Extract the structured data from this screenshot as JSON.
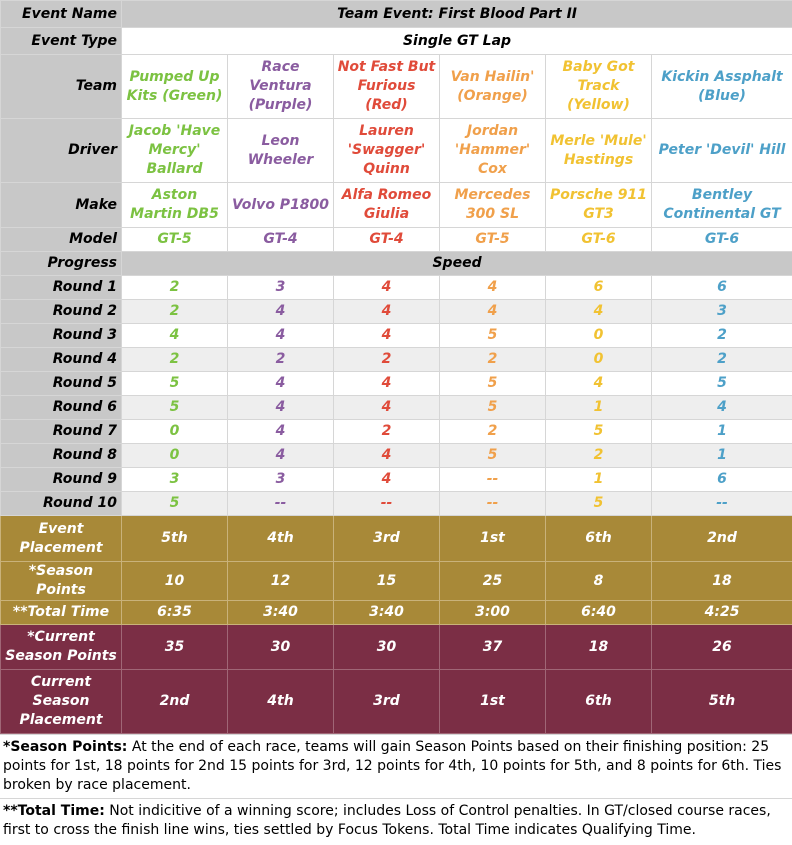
{
  "colors": {
    "green": "#7cc242",
    "purple": "#8a5ca0",
    "red": "#e04b3a",
    "orange": "#f0a04b",
    "yellow": "#f1c232",
    "blue": "#4da0c8",
    "header_gray": "#c8c8c8",
    "gold": "#a88938",
    "maroon": "#7b2e45"
  },
  "labels": {
    "event_name": "Event Name",
    "event_type": "Event Type",
    "team": "Team",
    "driver": "Driver",
    "make": "Make",
    "model": "Model",
    "progress": "Progress",
    "speed": "Speed",
    "event_placement": "Event Placement",
    "season_points": "*Season Points",
    "total_time": "**Total Time",
    "current_points": "*Current Season Points",
    "current_placement": "Current Season Placement"
  },
  "event_name_value": "Team Event: First Blood Part II",
  "event_type_value": "Single GT Lap",
  "teams": [
    {
      "team": "Pumped Up Kits (Green)",
      "driver": "Jacob 'Have Mercy' Ballard",
      "make": "Aston Martin DB5",
      "model": "GT-5",
      "color": "green",
      "placement": "5th",
      "season_points": "10",
      "total_time": "6:35",
      "current_points": "35",
      "current_placement": "2nd"
    },
    {
      "team": "Race Ventura (Purple)",
      "driver": "Leon Wheeler",
      "make": "Volvo P1800",
      "model": "GT-4",
      "color": "purple",
      "placement": "4th",
      "season_points": "12",
      "total_time": "3:40",
      "current_points": "30",
      "current_placement": "4th"
    },
    {
      "team": "Not Fast But Furious (Red)",
      "driver": "Lauren 'Swagger' Quinn",
      "make": "Alfa Romeo Giulia",
      "model": "GT-4",
      "color": "red",
      "placement": "3rd",
      "season_points": "15",
      "total_time": "3:40",
      "current_points": "30",
      "current_placement": "3rd"
    },
    {
      "team": "Van Hailin' (Orange)",
      "driver": "Jordan 'Hammer' Cox",
      "make": "Mercedes 300 SL",
      "model": "GT-5",
      "color": "orange",
      "placement": "1st",
      "season_points": "25",
      "total_time": "3:00",
      "current_points": "37",
      "current_placement": "1st"
    },
    {
      "team": "Baby Got Track (Yellow)",
      "driver": "Merle 'Mule' Hastings",
      "make": "Porsche 911 GT3",
      "model": "GT-6",
      "color": "yellow",
      "placement": "6th",
      "season_points": "8",
      "total_time": "6:40",
      "current_points": "18",
      "current_placement": "6th"
    },
    {
      "team": "Kickin Assphalt (Blue)",
      "driver": "Peter 'Devil' Hill",
      "make": "Bentley Continental GT",
      "model": "GT-6",
      "color": "blue",
      "placement": "2nd",
      "season_points": "18",
      "total_time": "4:25",
      "current_points": "26",
      "current_placement": "5th"
    }
  ],
  "rounds": [
    {
      "label": "Round 1",
      "values": [
        "2",
        "3",
        "4",
        "4",
        "6",
        "6"
      ]
    },
    {
      "label": "Round 2",
      "values": [
        "2",
        "4",
        "4",
        "4",
        "4",
        "3"
      ]
    },
    {
      "label": "Round 3",
      "values": [
        "4",
        "4",
        "4",
        "5",
        "0",
        "2"
      ]
    },
    {
      "label": "Round 4",
      "values": [
        "2",
        "2",
        "2",
        "2",
        "0",
        "2"
      ]
    },
    {
      "label": "Round 5",
      "values": [
        "5",
        "4",
        "4",
        "5",
        "4",
        "5"
      ]
    },
    {
      "label": "Round 6",
      "values": [
        "5",
        "4",
        "4",
        "5",
        "1",
        "4"
      ]
    },
    {
      "label": "Round 7",
      "values": [
        "0",
        "4",
        "2",
        "2",
        "5",
        "1"
      ]
    },
    {
      "label": "Round 8",
      "values": [
        "0",
        "4",
        "4",
        "5",
        "2",
        "1"
      ]
    },
    {
      "label": "Round 9",
      "values": [
        "3",
        "3",
        "4",
        "--",
        "1",
        "6"
      ]
    },
    {
      "label": "Round 10",
      "values": [
        "5",
        "--",
        "--",
        "--",
        "5",
        "--"
      ]
    }
  ],
  "notes": {
    "season_points_title": "*Season Points:",
    "season_points_text": " At the end of each race, teams will gain Season Points based on their finishing position: 25 points for 1st, 18 points for 2nd 15 points for 3rd, 12 points for 4th, 10 points for 5th, and 8 points for 6th. Ties broken by race placement.",
    "total_time_title": "**Total Time:",
    "total_time_text": " Not indicitive of a winning score; includes Loss of Control penalties. In GT/closed course races, first to cross the finish line wins, ties settled by Focus Tokens. Total Time indicates Qualifying Time."
  }
}
